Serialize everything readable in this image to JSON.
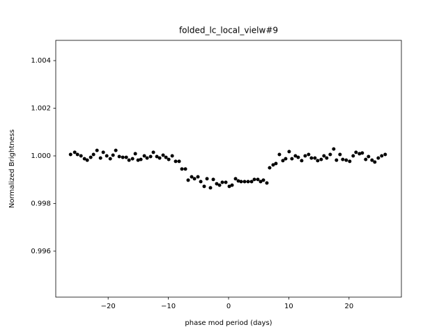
{
  "chart_data": {
    "type": "scatter",
    "title": "folded_lc_local_vielw#9",
    "xlabel": "phase mod period (days)",
    "ylabel": "Normalized Brightness",
    "color": "#000000",
    "xlim": [
      -28.7,
      28.7
    ],
    "ylim": [
      0.99407,
      1.00485
    ],
    "xticks": [
      {
        "value": -20,
        "label": "−20"
      },
      {
        "value": -10,
        "label": "−10"
      },
      0,
      10,
      20
    ],
    "yticks": [
      0.996,
      0.998,
      {
        "value": 1,
        "label": "1.000"
      },
      1.002,
      1.004
    ],
    "x": [
      -26.24,
      -25.55,
      -25.09,
      -24.51,
      -23.93,
      -23.47,
      -22.89,
      -22.43,
      -21.85,
      -21.27,
      -20.81,
      -20.23,
      -19.65,
      -19.19,
      -18.73,
      -18.15,
      -17.57,
      -16.99,
      -16.53,
      -15.95,
      -15.49,
      -15.03,
      -14.57,
      -13.99,
      -13.53,
      -12.95,
      -12.49,
      -11.91,
      -11.45,
      -10.87,
      -10.4,
      -9.94,
      -9.36,
      -8.79,
      -8.21,
      -7.75,
      -7.17,
      -6.71,
      -6.13,
      -5.66,
      -5.09,
      -4.62,
      -4.05,
      -3.58,
      -3.01,
      -2.54,
      -1.97,
      -1.5,
      -1.04,
      -0.46,
      0.12,
      0.58,
      1.16,
      1.62,
      2.08,
      2.66,
      3.24,
      3.82,
      4.28,
      4.86,
      5.32,
      5.78,
      6.36,
      6.82,
      7.4,
      7.86,
      8.44,
      9.02,
      9.48,
      10.06,
      10.52,
      11.1,
      11.56,
      12.14,
      12.72,
      13.29,
      13.76,
      14.34,
      14.8,
      15.38,
      15.84,
      16.3,
      16.88,
      17.46,
      17.92,
      18.5,
      18.96,
      19.54,
      20.12,
      20.69,
      21.16,
      21.73,
      22.2,
      22.77,
      23.24,
      23.82,
      24.28,
      24.86,
      25.43,
      26.01
    ],
    "values": [
      1.00006,
      1.00015,
      1.00006,
      1.0,
      0.99988,
      0.99982,
      0.99994,
      1.00006,
      1.00023,
      0.99991,
      1.00015,
      1.0,
      0.99988,
      1.00003,
      1.00023,
      0.99997,
      0.99994,
      0.99994,
      0.99982,
      0.99988,
      1.00009,
      0.99982,
      0.99985,
      1.0,
      0.99991,
      0.99997,
      1.00015,
      0.99997,
      0.99991,
      1.00003,
      0.99994,
      0.99985,
      1.0,
      0.99977,
      0.99977,
      0.99945,
      0.99945,
      0.99898,
      0.99912,
      0.99904,
      0.99912,
      0.99892,
      0.99872,
      0.99904,
      0.99866,
      0.99901,
      0.99883,
      0.99877,
      0.99889,
      0.99889,
      0.99872,
      0.99877,
      0.99904,
      0.99895,
      0.99892,
      0.99892,
      0.99892,
      0.99892,
      0.99901,
      0.99901,
      0.99892,
      0.99898,
      0.99886,
      0.9995,
      0.99962,
      0.99968,
      1.00006,
      0.9998,
      0.99988,
      1.00018,
      0.99988,
      1.0,
      0.99994,
      0.9998,
      1.0,
      1.00006,
      0.99991,
      0.99991,
      0.9998,
      0.99985,
      1.0,
      0.99991,
      1.00006,
      1.00029,
      0.99982,
      1.00006,
      0.99985,
      0.99982,
      0.99977,
      1.0,
      1.00015,
      1.00009,
      1.00012,
      0.99985,
      0.99997,
      0.99982,
      0.99974,
      0.99991,
      1.0,
      1.00006
    ]
  }
}
